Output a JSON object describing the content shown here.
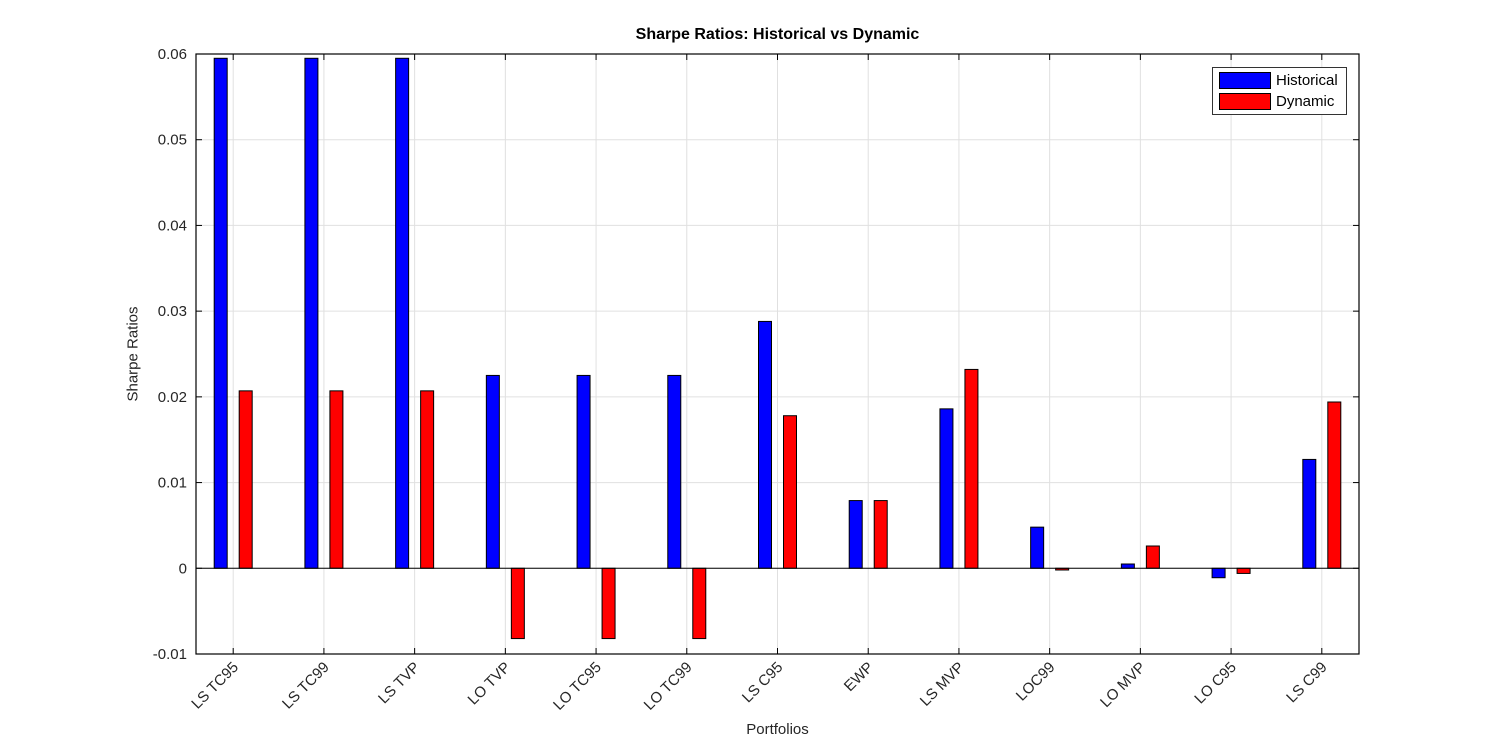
{
  "chart_data": {
    "type": "bar",
    "title": "Sharpe Ratios: Historical vs Dynamic",
    "xlabel": "Portfolios",
    "ylabel": "Sharpe Ratios",
    "categories": [
      "LS TC95",
      "LS TC99",
      "LS TVP",
      "LO TVP",
      "LO TC95",
      "LO TC99",
      "LS C95",
      "EWP",
      "LS MVP",
      "LOC99",
      "LO MVP",
      "LO C95",
      "LS C99"
    ],
    "series": [
      {
        "name": "Historical",
        "color": "#0000FF",
        "values": [
          0.0595,
          0.0595,
          0.0595,
          0.0225,
          0.0225,
          0.0225,
          0.0288,
          0.0079,
          0.0186,
          0.0048,
          0.0005,
          -0.0011,
          0.0127
        ]
      },
      {
        "name": "Dynamic",
        "color": "#FF0000",
        "values": [
          0.0207,
          0.0207,
          0.0207,
          -0.0082,
          -0.0082,
          -0.0082,
          0.0178,
          0.0079,
          0.0232,
          -0.0002,
          0.0026,
          -0.0006,
          0.0194
        ]
      }
    ],
    "ylim": [
      -0.01,
      0.06
    ],
    "yticks": [
      -0.01,
      0,
      0.01,
      0.02,
      0.03,
      0.04,
      0.05,
      0.06
    ],
    "ytick_labels": [
      "-0.01",
      "0",
      "0.01",
      "0.02",
      "0.03",
      "0.04",
      "0.05",
      "0.06"
    ],
    "grid": true,
    "legend_position": "top-right",
    "x_tick_angle_deg": -45,
    "bar_edge_color": "#000000",
    "grid_color": "#E0E0E0",
    "axis_color": "#000000",
    "tick_label_color": "#262626"
  }
}
